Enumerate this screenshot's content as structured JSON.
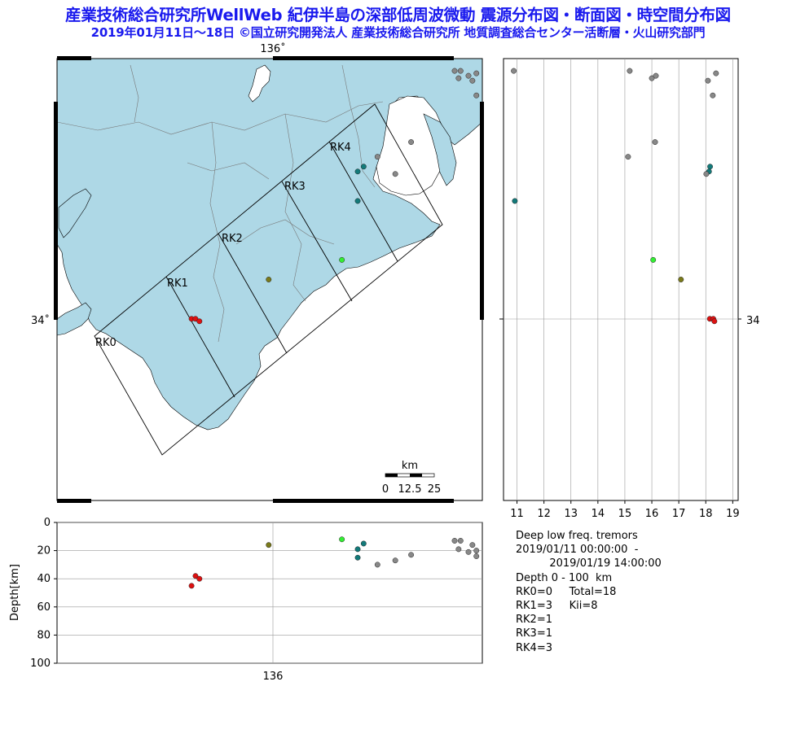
{
  "header": {
    "title": "産業技術総合研究所WellWeb 紀伊半島の深部低周波微動  震源分布図・断面図・時空間分布図",
    "subtitle": "2019年01月11日～18日  ©国立研究開発法人  産業技術総合研究所 地質調査総合センター活断層・火山研究部門"
  },
  "map": {
    "lon_label": "136˚",
    "lat_label": "34˚",
    "regions": [
      "RK0",
      "RK1",
      "RK2",
      "RK3",
      "RK4"
    ],
    "scale_unit": "km",
    "scale_ticks": [
      "0",
      "12.5",
      "25"
    ],
    "land_color": "#aed8e6",
    "sea_color": "#ffffff"
  },
  "timeline": {
    "x_ticks": [
      "11",
      "12",
      "13",
      "14",
      "15",
      "16",
      "17",
      "18",
      "19"
    ],
    "y_label": "34"
  },
  "cross_section": {
    "y_label": "Depth[km]",
    "y_ticks": [
      "0",
      "20",
      "40",
      "60",
      "80",
      "100"
    ],
    "x_label": "136"
  },
  "info": {
    "line1": "Deep low freq. tremors",
    "line2": "2019/01/11 00:00:00  -",
    "line3": "          2019/01/19 14:00:00",
    "line4": "Depth 0 - 100  km",
    "line5": "RK0=0     Total=18",
    "line6": "RK1=3     Kii=8",
    "line7": "RK2=1",
    "line8": "RK3=1",
    "line9": "RK4=3"
  },
  "colors": {
    "RK1": "#dd1111",
    "RK2": "#7a7a1a",
    "RK3": "#33ee33",
    "RK4": "#137a7a",
    "outside": "#888888"
  },
  "events": [
    {
      "id": 1,
      "region": "RK1",
      "lon": 135.68,
      "lat": 33.99,
      "day": 18.15,
      "depth": 45
    },
    {
      "id": 2,
      "region": "RK1",
      "lon": 135.7,
      "lat": 33.99,
      "day": 18.28,
      "depth": 38
    },
    {
      "id": 3,
      "region": "RK1",
      "lon": 135.72,
      "lat": 33.98,
      "day": 18.32,
      "depth": 40
    },
    {
      "id": 4,
      "region": "RK2",
      "lon": 136.07,
      "lat": 34.15,
      "day": 17.08,
      "depth": 16
    },
    {
      "id": 5,
      "region": "RK3",
      "lon": 136.44,
      "lat": 34.23,
      "day": 16.05,
      "depth": 12
    },
    {
      "id": 6,
      "region": "RK4",
      "lon": 136.52,
      "lat": 34.59,
      "day": 18.12,
      "depth": 19
    },
    {
      "id": 7,
      "region": "RK4",
      "lon": 136.55,
      "lat": 34.61,
      "day": 18.16,
      "depth": 15
    },
    {
      "id": 8,
      "region": "RK4",
      "lon": 136.52,
      "lat": 34.47,
      "day": 10.92,
      "depth": 25
    },
    {
      "id": 9,
      "region": "outside",
      "lon": 136.62,
      "lat": 34.65,
      "day": 15.12,
      "depth": 30
    },
    {
      "id": 10,
      "region": "outside",
      "lon": 136.71,
      "lat": 34.58,
      "day": 18.02,
      "depth": 27
    },
    {
      "id": 11,
      "region": "outside",
      "lon": 136.79,
      "lat": 34.71,
      "day": 16.12,
      "depth": 23
    },
    {
      "id": 12,
      "region": "outside",
      "lon": 137.01,
      "lat": 35.0,
      "day": 10.88,
      "depth": 13
    },
    {
      "id": 13,
      "region": "outside",
      "lon": 137.04,
      "lat": 35.0,
      "day": 15.18,
      "depth": 13
    },
    {
      "id": 14,
      "region": "outside",
      "lon": 137.03,
      "lat": 34.97,
      "day": 16.0,
      "depth": 19
    },
    {
      "id": 15,
      "region": "outside",
      "lon": 137.08,
      "lat": 34.98,
      "day": 16.15,
      "depth": 21
    },
    {
      "id": 16,
      "region": "outside",
      "lon": 137.1,
      "lat": 34.96,
      "day": 18.08,
      "depth": 16
    },
    {
      "id": 17,
      "region": "outside",
      "lon": 137.12,
      "lat": 34.9,
      "day": 18.26,
      "depth": 24
    },
    {
      "id": 18,
      "region": "outside",
      "lon": 137.12,
      "lat": 34.99,
      "day": 18.38,
      "depth": 20
    }
  ]
}
